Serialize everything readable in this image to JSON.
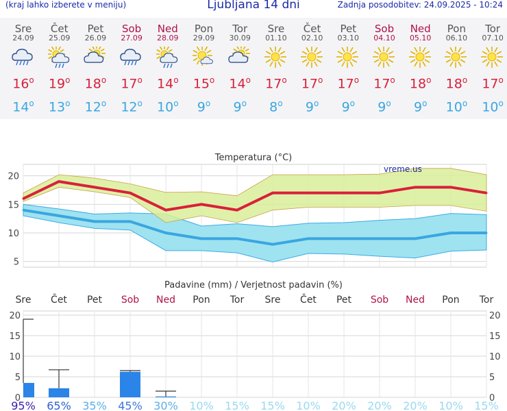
{
  "header": {
    "hint": "(kraj lahko izberete v meniju)",
    "title": "Ljubljana 14 dni",
    "updated": "Zadnja posodobitev: 24.09.2025 - 10:24"
  },
  "days": [
    {
      "name": "Sre",
      "date": "24.09",
      "weekend": false,
      "icon": "rain-cloud-icon",
      "max": 16,
      "min": 14
    },
    {
      "name": "Čet",
      "date": "25.09",
      "weekend": false,
      "icon": "sun-cloud-rain-icon",
      "max": 19,
      "min": 13
    },
    {
      "name": "Pet",
      "date": "26.09",
      "weekend": false,
      "icon": "sun-cloud-icon",
      "max": 18,
      "min": 12
    },
    {
      "name": "Sob",
      "date": "27.09",
      "weekend": true,
      "icon": "rain-cloud-icon",
      "max": 17,
      "min": 12
    },
    {
      "name": "Ned",
      "date": "28.09",
      "weekend": true,
      "icon": "sun-cloud-rain-icon",
      "max": 14,
      "min": 10
    },
    {
      "name": "Pon",
      "date": "29.09",
      "weekend": false,
      "icon": "sun-cloud-small-icon",
      "max": 15,
      "min": 9
    },
    {
      "name": "Tor",
      "date": "30.09",
      "weekend": false,
      "icon": "sun-cloud-icon",
      "max": 14,
      "min": 9
    },
    {
      "name": "Sre",
      "date": "01.10",
      "weekend": false,
      "icon": "sun-icon",
      "max": 17,
      "min": 8
    },
    {
      "name": "Čet",
      "date": "02.10",
      "weekend": false,
      "icon": "sun-icon",
      "max": 17,
      "min": 9
    },
    {
      "name": "Pet",
      "date": "03.10",
      "weekend": false,
      "icon": "sun-icon",
      "max": 17,
      "min": 9
    },
    {
      "name": "Sob",
      "date": "04.10",
      "weekend": true,
      "icon": "sun-icon",
      "max": 17,
      "min": 9
    },
    {
      "name": "Ned",
      "date": "05.10",
      "weekend": true,
      "icon": "sun-icon",
      "max": 18,
      "min": 9
    },
    {
      "name": "Pon",
      "date": "06.10",
      "weekend": false,
      "icon": "sun-icon",
      "max": 18,
      "min": 10
    },
    {
      "name": "Tor",
      "date": "07.10",
      "weekend": false,
      "icon": "sun-icon",
      "max": 17,
      "min": 10
    }
  ],
  "colors": {
    "max": "#d8213a",
    "min": "#3aa6e0",
    "weekend": "#b0104a",
    "header": "#1a2aa8",
    "bar": "#2b84e8",
    "max_band": "#d9ee9a",
    "min_band": "#9fe3f0"
  },
  "chart_data": [
    {
      "type": "line",
      "title": "Temperatura (°C)",
      "watermark": "vreme.us",
      "ylim": [
        4,
        22
      ],
      "yticks": [
        5,
        10,
        15,
        20
      ],
      "grid": true,
      "series": [
        {
          "values": [
            16,
            19,
            18,
            17,
            14,
            15,
            14,
            17,
            17,
            17,
            17,
            18,
            18,
            17
          ]
        },
        {
          "values": [
            14,
            13,
            12,
            12,
            10,
            9,
            9,
            8,
            9,
            9,
            9,
            9,
            10,
            10
          ]
        }
      ],
      "bands": [
        {
          "upper": [
            17,
            20.2,
            19.6,
            18.6,
            17.1,
            17.2,
            16.5,
            20.2,
            20.2,
            20.2,
            20.3,
            21.3,
            21.3,
            20.2
          ],
          "lower": [
            15.5,
            18,
            17.2,
            16.2,
            11.8,
            13,
            11.8,
            14,
            14.5,
            14.5,
            14.5,
            14.8,
            14.8,
            13.8
          ]
        },
        {
          "upper": [
            15,
            14.2,
            13.3,
            13.5,
            13.3,
            11.2,
            11.6,
            11.1,
            11.7,
            11.8,
            12.2,
            12.5,
            13.4,
            13.2
          ],
          "lower": [
            13,
            11.8,
            10.8,
            10.5,
            6.9,
            6.9,
            6.5,
            4.9,
            6.4,
            6.3,
            5.9,
            5.6,
            6.8,
            7
          ]
        }
      ]
    },
    {
      "type": "bar",
      "title": "Padavine (mm) / Verjetnost padavin (%)",
      "ylim": [
        0,
        21
      ],
      "yticks": [
        0,
        5,
        10,
        15,
        20
      ],
      "categories": [
        "Sre",
        "Čet",
        "Pet",
        "Sob",
        "Ned",
        "Pon",
        "Tor",
        "Sre",
        "Čet",
        "Pet",
        "Sob",
        "Ned",
        "Pon",
        "Tor"
      ],
      "values": [
        3.5,
        2.2,
        0,
        6.2,
        0.2,
        0,
        0,
        0,
        0,
        0,
        0,
        0,
        0,
        0
      ],
      "error_high": [
        19,
        6.7,
        0,
        6.5,
        1.5,
        0,
        0,
        0,
        0,
        0,
        0,
        0,
        0,
        0
      ],
      "probability": [
        "95%",
        "65%",
        "35%",
        "45%",
        "30%",
        "10%",
        "15%",
        "15%",
        "10%",
        "20%",
        "20%",
        "20%",
        "10%",
        "15%"
      ],
      "probability_colors": [
        "#3a1fae",
        "#2f5fd0",
        "#5aaee8",
        "#3a78d8",
        "#5aaee8",
        "#9ad8f0",
        "#9ad8f0",
        "#9ad8f0",
        "#9ad8f0",
        "#9ad8f0",
        "#9ad8f0",
        "#9ad8f0",
        "#9ad8f0",
        "#9ad8f0"
      ]
    }
  ]
}
